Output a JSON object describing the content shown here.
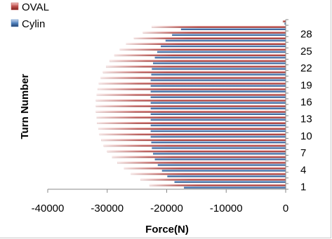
{
  "chart_data": {
    "type": "bar",
    "orientation": "horizontal",
    "stacked": false,
    "xlabel": "Force(N)",
    "ylabel": "Turn Number",
    "xlim": [
      -40000,
      0
    ],
    "xticks": [
      -40000,
      -30000,
      -20000,
      -10000,
      0
    ],
    "xtick_labels": [
      "-40000",
      "-30000",
      "-20000",
      "-10000",
      "0"
    ],
    "ytick_labels": [
      "1",
      "4",
      "7",
      "10",
      "13",
      "16",
      "19",
      "22",
      "25",
      "28"
    ],
    "categories": [
      1,
      2,
      3,
      4,
      5,
      6,
      7,
      8,
      9,
      10,
      11,
      12,
      13,
      14,
      15,
      16,
      17,
      18,
      19,
      20,
      21,
      22,
      23,
      24,
      25,
      26,
      27,
      28,
      29,
      30
    ],
    "series": [
      {
        "name": "OVAL",
        "color": "#c0504d",
        "values": [
          -22900,
          -24400,
          -26000,
          -27200,
          -28300,
          -29200,
          -30000,
          -30600,
          -31000,
          -31300,
          -31500,
          -31700,
          -31800,
          -31900,
          -31900,
          -31900,
          -31800,
          -31600,
          -31400,
          -31100,
          -30700,
          -30200,
          -29600,
          -28800,
          -27900,
          -26800,
          -25500,
          -24000,
          -22500,
          -500
        ]
      },
      {
        "name": "Cylin",
        "color": "#4f81bd",
        "values": [
          -17100,
          -18700,
          -19900,
          -20800,
          -21500,
          -22000,
          -22300,
          -22500,
          -22600,
          -22700,
          -22700,
          -22700,
          -22700,
          -22700,
          -22700,
          -22700,
          -22700,
          -22700,
          -22700,
          -22700,
          -22600,
          -22500,
          -22300,
          -22000,
          -21600,
          -21000,
          -20200,
          -19100,
          -17600,
          -200
        ]
      }
    ],
    "legend_position": "top-left",
    "grid": false
  }
}
